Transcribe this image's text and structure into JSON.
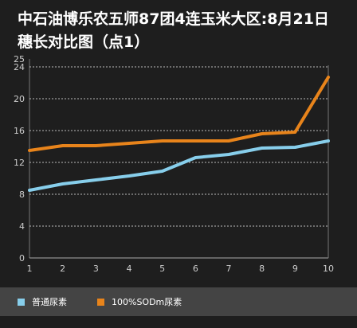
{
  "title_line1": "中石油博乐农五师87团4连玉米大区:8月21日",
  "title_line2": "穗长对比图（点1）",
  "colors": {
    "background": "#1e1e1e",
    "series_a": "#87ceeb",
    "series_b": "#e8841b",
    "legend_bg": "#444444",
    "grid": "#bbbbbb"
  },
  "chart_data": {
    "type": "line",
    "x": [
      1,
      2,
      3,
      4,
      5,
      6,
      7,
      8,
      9,
      10
    ],
    "x_tick_labels": [
      "1",
      "2",
      "3",
      "4",
      "5",
      "6",
      "7",
      "8",
      "9",
      "10"
    ],
    "y_ticks": [
      0,
      4,
      8,
      12,
      16,
      20,
      24,
      25
    ],
    "ylim": [
      0,
      25
    ],
    "grid": "dotted horizontal",
    "legend_position": "bottom",
    "series": [
      {
        "name": "普通尿素",
        "color": "#87ceeb",
        "values": [
          8.5,
          9.3,
          9.8,
          10.3,
          10.9,
          12.6,
          13.0,
          13.8,
          13.9,
          14.7
        ]
      },
      {
        "name": "100%SODm尿素",
        "color": "#e8841b",
        "values": [
          13.5,
          14.1,
          14.1,
          14.4,
          14.7,
          14.7,
          14.7,
          15.6,
          15.8,
          22.7
        ]
      }
    ]
  }
}
